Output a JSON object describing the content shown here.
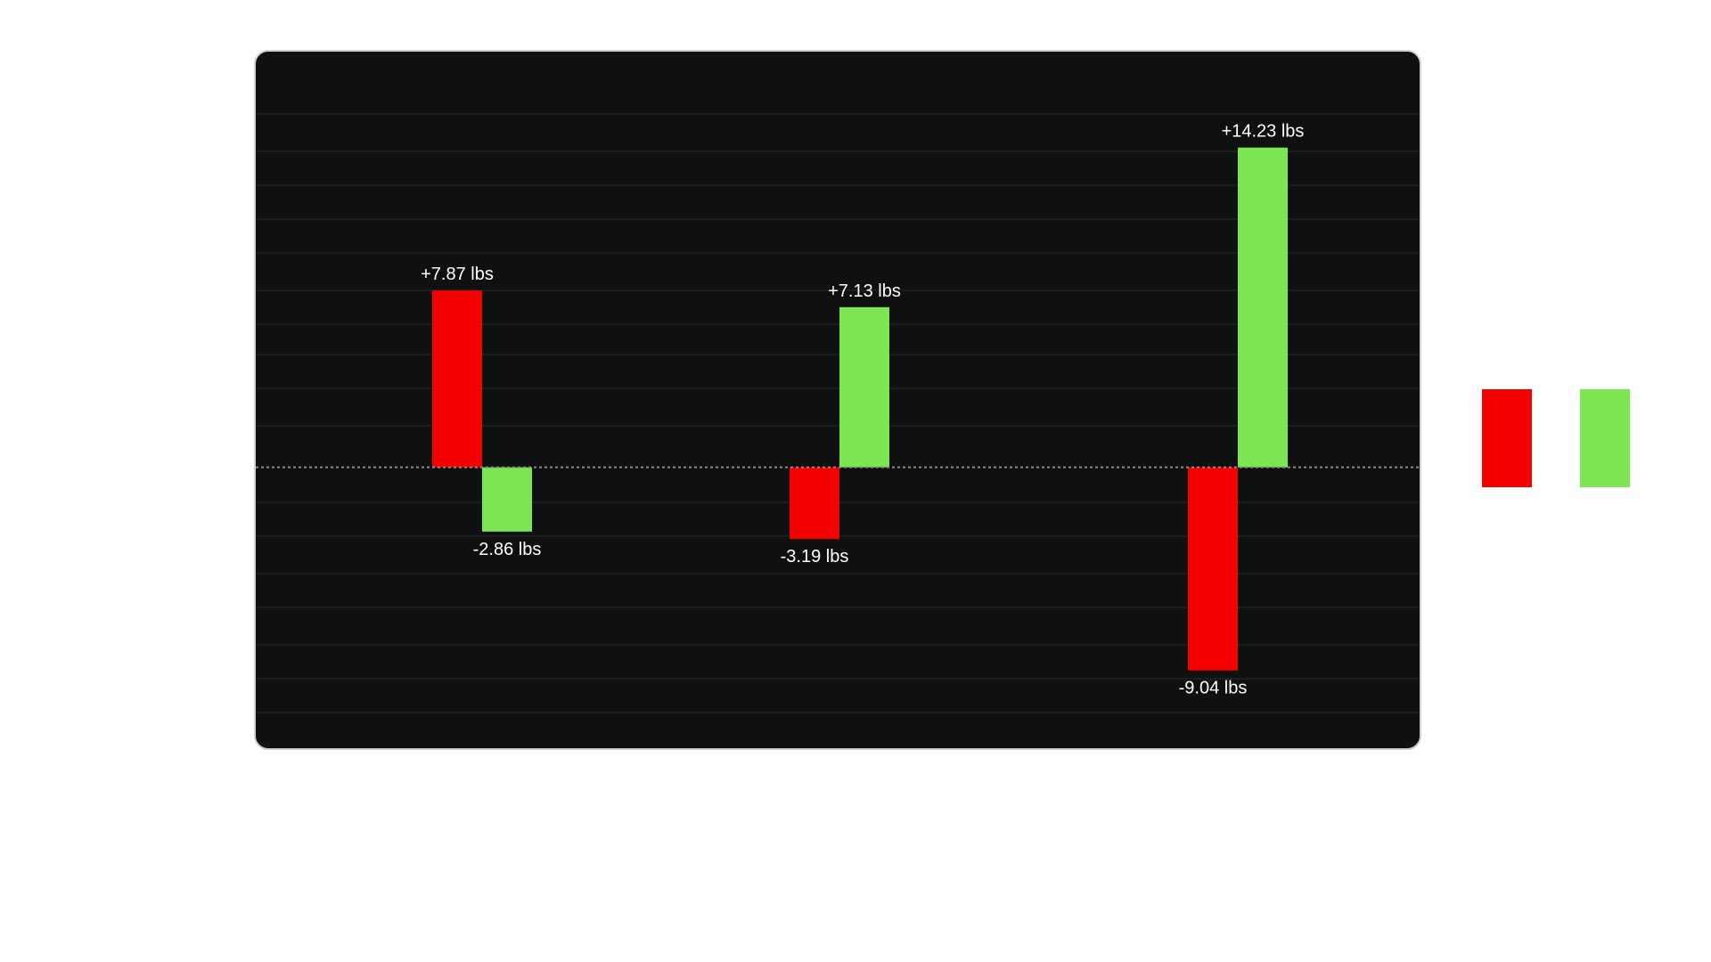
{
  "chart_data": {
    "type": "bar",
    "categories": [
      "",
      "",
      ""
    ],
    "unit": "lbs",
    "ylim": [
      -12.5,
      18.5
    ],
    "grid": true,
    "zero_line": "dotted",
    "series": [
      {
        "color": "#f40000",
        "values": [
          7.87,
          -3.19,
          -9.04
        ]
      },
      {
        "color": "#7ce653",
        "values": [
          -2.86,
          7.13,
          14.23
        ]
      }
    ],
    "labels": [
      [
        "+7.87 lbs",
        "-3.19 lbs",
        "-9.04 lbs"
      ],
      [
        "-2.86 lbs",
        "+7.13 lbs",
        "+14.23 lbs"
      ]
    ],
    "legend": {
      "placement": "right",
      "entries": [
        "",
        ""
      ]
    }
  }
}
